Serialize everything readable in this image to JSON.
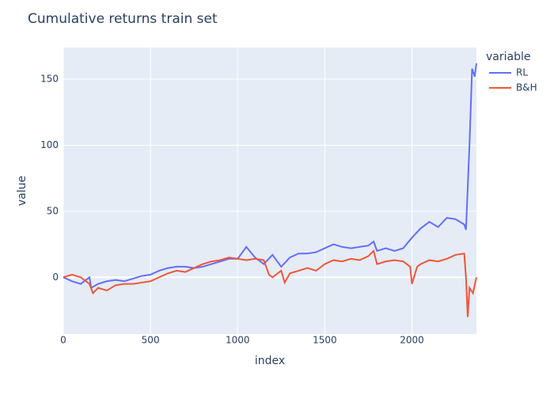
{
  "chart_data": {
    "type": "line",
    "title": "Cumulative returns train set",
    "x_label": "index",
    "y_label": "value",
    "legend_title": "variable",
    "legend_position": "right",
    "grid": true,
    "xlim": [
      0,
      2370
    ],
    "xticks": [
      0,
      500,
      1000,
      1500,
      2000
    ],
    "ylim": [
      -43,
      174
    ],
    "yticks": [
      0,
      50,
      100,
      150
    ],
    "series": [
      {
        "name": "RL",
        "color": "#636efa",
        "x": [
          0,
          50,
          100,
          150,
          160,
          200,
          250,
          300,
          350,
          400,
          450,
          500,
          550,
          600,
          650,
          700,
          750,
          800,
          850,
          900,
          950,
          1000,
          1050,
          1100,
          1150,
          1200,
          1250,
          1300,
          1350,
          1400,
          1450,
          1500,
          1550,
          1600,
          1650,
          1700,
          1750,
          1780,
          1800,
          1850,
          1900,
          1950,
          2000,
          2050,
          2100,
          2150,
          2200,
          2250,
          2300,
          2310,
          2330,
          2345,
          2360,
          2370
        ],
        "values": [
          0,
          -3,
          -5,
          0,
          -8,
          -5,
          -3,
          -2,
          -3,
          -1,
          1,
          2,
          5,
          7,
          8,
          8,
          7,
          8,
          10,
          12,
          14,
          14,
          23,
          15,
          10,
          17,
          8,
          15,
          18,
          18,
          19,
          22,
          25,
          23,
          22,
          23,
          24,
          27,
          20,
          22,
          20,
          22,
          30,
          37,
          42,
          38,
          45,
          44,
          40,
          36,
          100,
          158,
          152,
          162
        ]
      },
      {
        "name": "B&H",
        "color": "#ef553b",
        "x": [
          0,
          50,
          100,
          150,
          170,
          200,
          250,
          300,
          350,
          400,
          450,
          500,
          550,
          600,
          650,
          700,
          750,
          800,
          850,
          900,
          950,
          1000,
          1050,
          1100,
          1150,
          1180,
          1200,
          1250,
          1270,
          1300,
          1350,
          1400,
          1450,
          1500,
          1550,
          1600,
          1650,
          1700,
          1750,
          1780,
          1800,
          1850,
          1900,
          1950,
          1990,
          2000,
          2030,
          2050,
          2100,
          2150,
          2200,
          2250,
          2300,
          2310,
          2320,
          2330,
          2350,
          2370
        ],
        "values": [
          0,
          2,
          0,
          -5,
          -12,
          -8,
          -10,
          -6,
          -5,
          -5,
          -4,
          -3,
          0,
          3,
          5,
          4,
          7,
          10,
          12,
          13,
          15,
          14,
          13,
          14,
          13,
          2,
          0,
          5,
          -4,
          3,
          5,
          7,
          5,
          10,
          13,
          12,
          14,
          13,
          16,
          20,
          10,
          12,
          13,
          12,
          8,
          -5,
          8,
          10,
          13,
          12,
          14,
          17,
          18,
          0,
          -30,
          -8,
          -12,
          0
        ]
      }
    ]
  }
}
